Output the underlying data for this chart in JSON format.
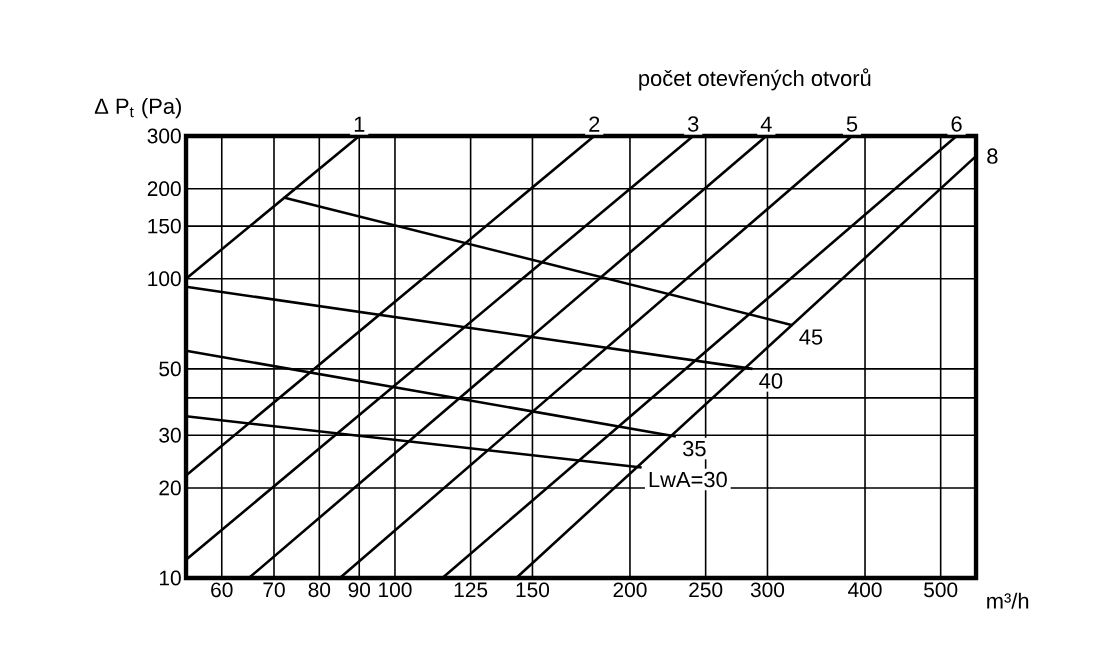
{
  "chart_data": {
    "type": "line",
    "title": "počet otevřených otvorů",
    "xlabel": "m³/h",
    "ylabel": "Δ P$_{t}$ (Pa)",
    "log": "xy",
    "xlim": [
      54,
      555
    ],
    "ylim": [
      10,
      300
    ],
    "xticks": [
      60,
      70,
      80,
      90,
      100,
      125,
      150,
      200,
      250,
      300,
      400,
      500
    ],
    "yticks": [
      10,
      20,
      30,
      {
        "value": 40,
        "label": null
      },
      50,
      100,
      150,
      200,
      300
    ],
    "grid": true,
    "legend": false,
    "marker": "none",
    "line_style": "solid",
    "series": [
      {
        "name": "1",
        "color": "#000000",
        "x": [
          54,
          90
        ],
        "values": [
          100,
          300
        ]
      },
      {
        "name": "2",
        "color": "#000000",
        "x": [
          54,
          180
        ],
        "values": [
          22,
          300
        ]
      },
      {
        "name": "3",
        "color": "#000000",
        "x": [
          54,
          241
        ],
        "values": [
          11.5,
          300
        ]
      },
      {
        "name": "4",
        "color": "#000000",
        "x": [
          65,
          299
        ],
        "values": [
          10,
          300
        ]
      },
      {
        "name": "5",
        "color": "#000000",
        "x": [
          85,
          385
        ],
        "values": [
          10,
          300
        ]
      },
      {
        "name": "6",
        "color": "#000000",
        "x": [
          115,
          524
        ],
        "values": [
          10,
          300
        ]
      },
      {
        "name": "8",
        "color": "#000000",
        "x": [
          143,
          555
        ],
        "values": [
          10,
          257
        ]
      },
      {
        "name": "45",
        "color": "#000000",
        "x": [
          72,
          323
        ],
        "values": [
          187,
          70
        ]
      },
      {
        "name": "40",
        "color": "#000000",
        "x": [
          54,
          287
        ],
        "values": [
          94,
          50
        ]
      },
      {
        "name": "35",
        "color": "#000000",
        "x": [
          54,
          229
        ],
        "values": [
          57.5,
          29.7
        ]
      },
      {
        "name": "LwA=30",
        "color": "#000000",
        "x": [
          54,
          207
        ],
        "values": [
          34.7,
          23.4
        ]
      }
    ]
  }
}
